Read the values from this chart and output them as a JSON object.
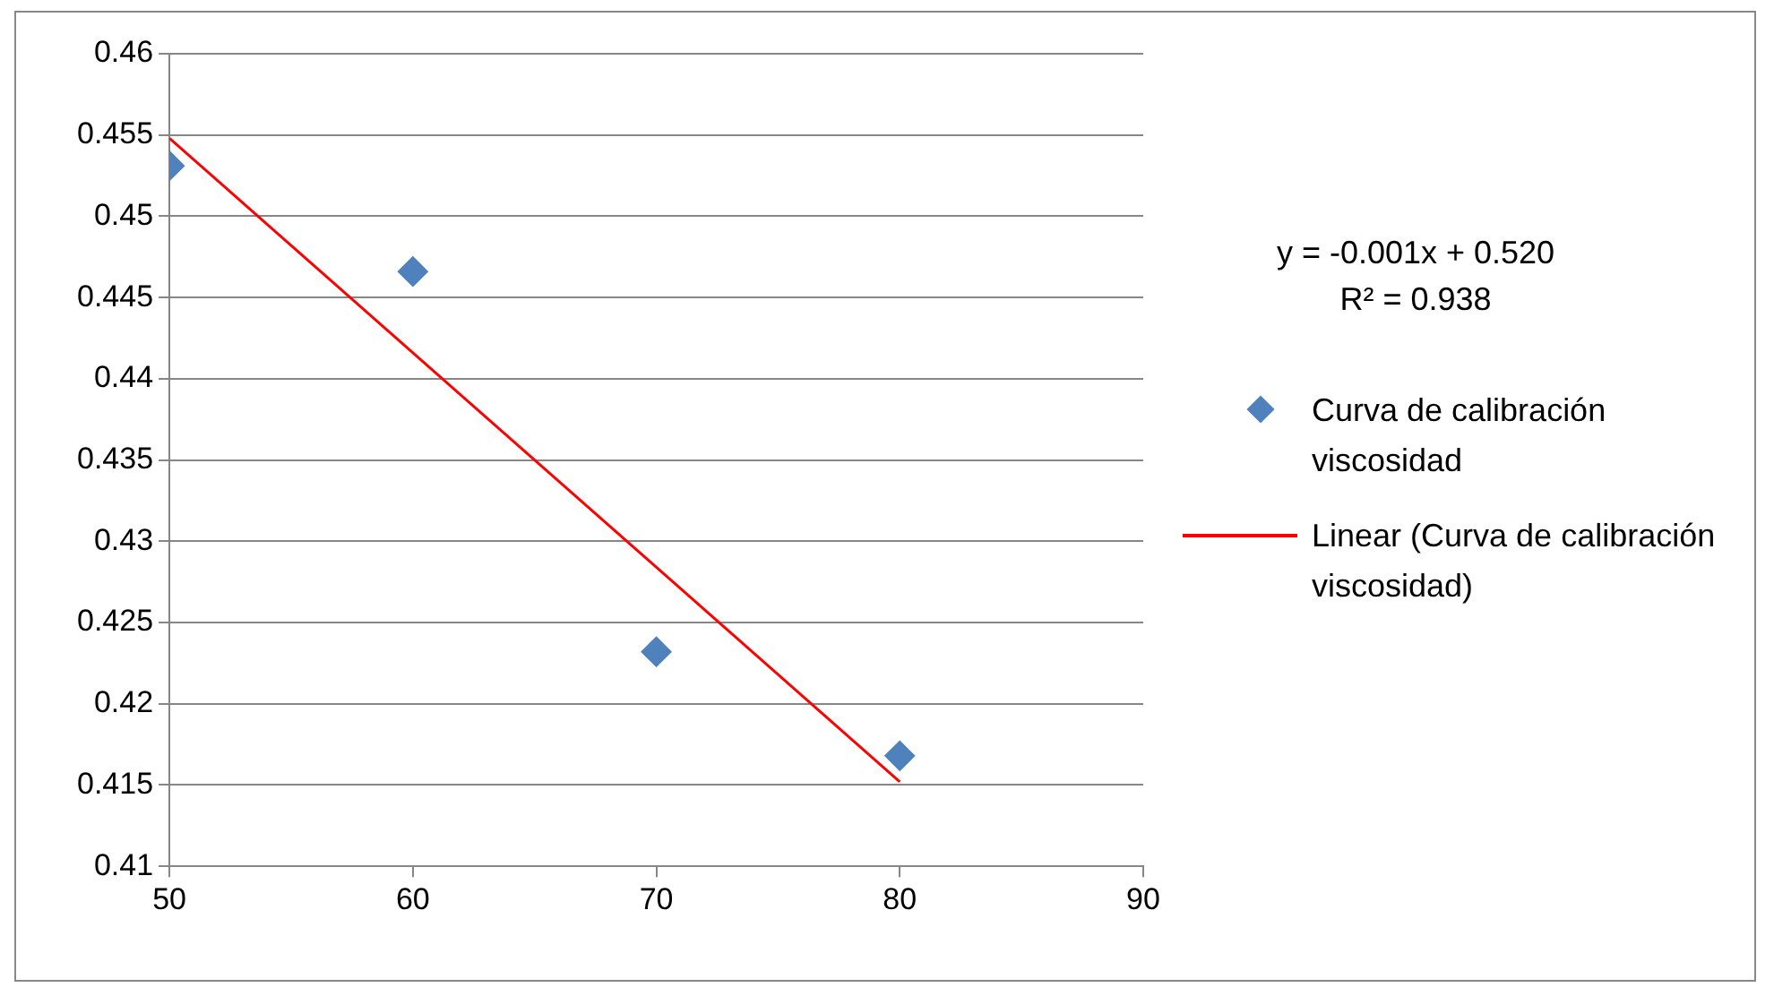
{
  "chart_data": {
    "type": "scatter",
    "xlim": [
      50,
      90
    ],
    "xticks": [
      50,
      60,
      70,
      80,
      90
    ],
    "ylim": [
      0.41,
      0.46
    ],
    "yticks": [
      0.41,
      0.415,
      0.42,
      0.425,
      0.43,
      0.435,
      0.44,
      0.445,
      0.45,
      0.455,
      0.46
    ],
    "grid": "y",
    "legend": "right",
    "annotations": [
      "y = -0.001x + 0.520",
      "R² = 0.938"
    ],
    "series": [
      {
        "name": "Curva de calibración viscosidad",
        "type": "scatter",
        "color": "#4f81bd",
        "marker": "diamond",
        "x": [
          50,
          60,
          70,
          80
        ],
        "values": [
          0.4531,
          0.4466,
          0.4232,
          0.4168
        ]
      },
      {
        "name": "Linear (Curva de calibración viscosidad)",
        "type": "line",
        "color": "#ff0000",
        "marker": "none",
        "x": [
          50,
          80
        ],
        "values": [
          0.4548,
          0.4152
        ]
      }
    ]
  }
}
